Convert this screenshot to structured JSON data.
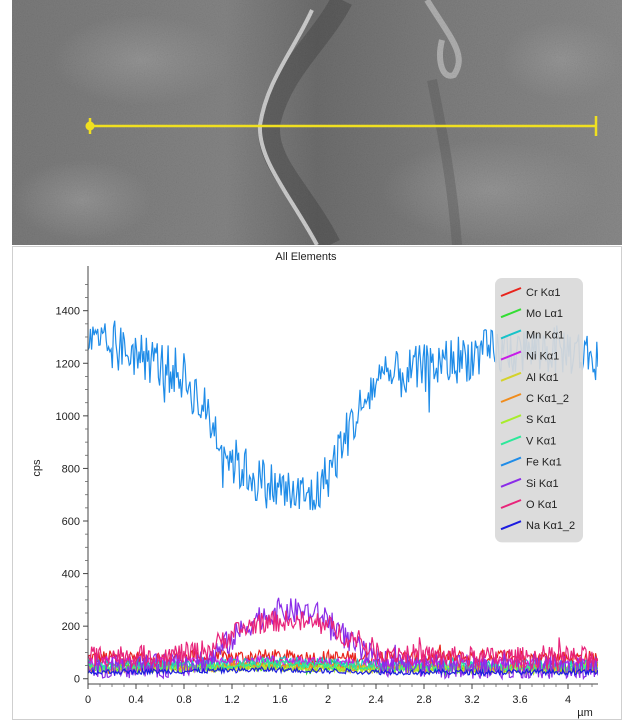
{
  "chart_data": {
    "type": "line",
    "title": "All Elements",
    "xlabel": "µm",
    "ylabel": "cps",
    "xlim": [
      0,
      4.25
    ],
    "ylim": [
      -20,
      1570
    ],
    "x_ticks": [
      "0",
      "0.4",
      "0.8",
      "1.2",
      "1.6",
      "2",
      "2.4",
      "2.8",
      "3.2",
      "3.6",
      "4"
    ],
    "y_ticks": [
      "0",
      "200",
      "400",
      "600",
      "800",
      "1000",
      "1200",
      "1400"
    ],
    "grid": false,
    "legend_position": "top-right",
    "line_scan": {
      "description_colors": {
        "line": "#f0e020"
      }
    },
    "series": [
      {
        "name": "Cr Kα1",
        "color": "#e8241c",
        "profile": {
          "x": [
            0,
            1.0,
            1.5,
            2.0,
            2.5,
            3.0,
            3.5,
            4.0,
            4.25
          ],
          "y": [
            80,
            80,
            85,
            80,
            80,
            80,
            85,
            80,
            80
          ]
        },
        "noise": 28
      },
      {
        "name": "Mo Lα1",
        "color": "#33dd33",
        "profile": {
          "x": [
            0,
            1.0,
            1.5,
            2.0,
            2.5,
            3.0,
            4.25
          ],
          "y": [
            45,
            45,
            50,
            45,
            45,
            40,
            40
          ]
        },
        "noise": 18
      },
      {
        "name": "Mn Kα1",
        "color": "#16c3c9",
        "profile": {
          "x": [
            0,
            1.0,
            1.5,
            2.0,
            2.5,
            4.25
          ],
          "y": [
            55,
            60,
            70,
            60,
            55,
            55
          ]
        },
        "noise": 18
      },
      {
        "name": "Ni Kα1",
        "color": "#c81ce8",
        "profile": {
          "x": [
            0,
            1.0,
            1.5,
            2.0,
            2.5,
            4.25
          ],
          "y": [
            60,
            60,
            70,
            60,
            55,
            55
          ]
        },
        "noise": 20
      },
      {
        "name": "Al Kα1",
        "color": "#d4d22a",
        "profile": {
          "x": [
            0,
            1.0,
            1.5,
            2.0,
            2.5,
            4.25
          ],
          "y": [
            35,
            40,
            45,
            40,
            35,
            35
          ]
        },
        "noise": 14
      },
      {
        "name": "C Kα1_2",
        "color": "#f08c1c",
        "profile": {
          "x": [
            0,
            1.0,
            1.5,
            2.0,
            2.5,
            4.25
          ],
          "y": [
            40,
            45,
            50,
            45,
            40,
            40
          ]
        },
        "noise": 14
      },
      {
        "name": "S Kα1",
        "color": "#a8ec2c",
        "profile": {
          "x": [
            0,
            1.0,
            1.5,
            2.0,
            2.5,
            4.25
          ],
          "y": [
            35,
            40,
            45,
            40,
            35,
            35
          ]
        },
        "noise": 14
      },
      {
        "name": "V Kα1",
        "color": "#2ce89a",
        "profile": {
          "x": [
            0,
            1.0,
            1.5,
            2.0,
            2.5,
            4.25
          ],
          "y": [
            45,
            50,
            55,
            50,
            45,
            45
          ]
        },
        "noise": 16
      },
      {
        "name": "Fe Kα1",
        "color": "#1f8ce8",
        "profile": {
          "x": [
            0,
            0.4,
            0.8,
            1.0,
            1.2,
            1.4,
            1.6,
            1.8,
            1.9,
            2.0,
            2.2,
            2.4,
            2.8,
            3.2,
            3.6,
            4.0,
            4.25
          ],
          "y": [
            1270,
            1240,
            1150,
            1000,
            830,
            760,
            720,
            690,
            700,
            780,
            970,
            1130,
            1180,
            1230,
            1250,
            1250,
            1220
          ]
        },
        "noise": 95
      },
      {
        "name": "Si Kα1",
        "color": "#8a2ce8",
        "profile": {
          "x": [
            0,
            0.6,
            1.0,
            1.2,
            1.4,
            1.6,
            1.8,
            2.0,
            2.2,
            2.4,
            2.8,
            4.25
          ],
          "y": [
            40,
            45,
            70,
            150,
            230,
            260,
            255,
            230,
            130,
            70,
            45,
            40
          ]
        },
        "noise": 50
      },
      {
        "name": "O Kα1",
        "color": "#e8247a",
        "profile": {
          "x": [
            0,
            0.6,
            1.0,
            1.2,
            1.4,
            1.6,
            1.8,
            2.0,
            2.2,
            2.4,
            2.8,
            3.2,
            4.25
          ],
          "y": [
            90,
            85,
            110,
            170,
            210,
            220,
            215,
            200,
            150,
            110,
            85,
            80,
            80
          ]
        },
        "noise": 42
      },
      {
        "name": "Na Kα1_2",
        "color": "#1c1ce0",
        "profile": {
          "x": [
            0,
            1.0,
            1.5,
            2.0,
            2.5,
            4.25
          ],
          "y": [
            25,
            30,
            35,
            30,
            25,
            25
          ]
        },
        "noise": 10
      }
    ]
  }
}
